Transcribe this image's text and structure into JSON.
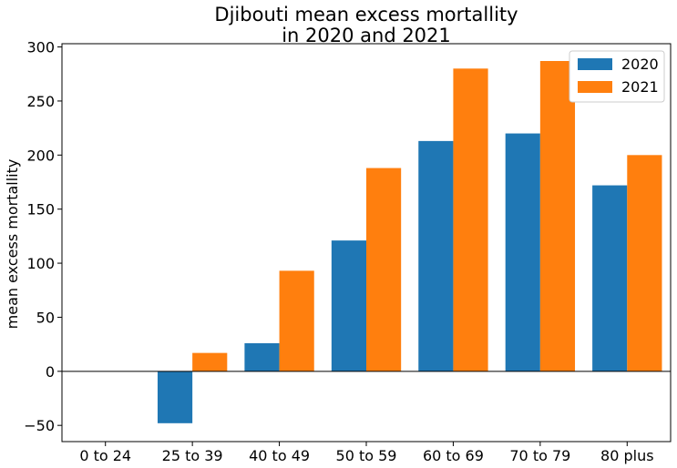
{
  "chart_data": {
    "type": "bar",
    "title": [
      "Djibouti mean excess mortallity",
      "in 2020 and 2021"
    ],
    "xlabel": "",
    "ylabel": "mean excess mortallity",
    "categories": [
      "0 to 24",
      "25 to 39",
      "40 to 49",
      "50 to 59",
      "60 to 69",
      "70 to 79",
      "80 plus"
    ],
    "series": [
      {
        "name": "2020",
        "color": "#1f77b4",
        "values": [
          0,
          -48,
          26,
          121,
          213,
          220,
          172
        ]
      },
      {
        "name": "2021",
        "color": "#ff7f0e",
        "values": [
          0,
          17,
          93,
          188,
          280,
          287,
          200
        ]
      }
    ],
    "ylim": [
      -65,
      303
    ],
    "yticks": [
      -50,
      0,
      50,
      100,
      150,
      200,
      250,
      300
    ],
    "ytick_labels": [
      "−50",
      "0",
      "50",
      "100",
      "150",
      "200",
      "250",
      "300"
    ],
    "zero_line": true,
    "grid": false,
    "legend_position": "top-right"
  }
}
